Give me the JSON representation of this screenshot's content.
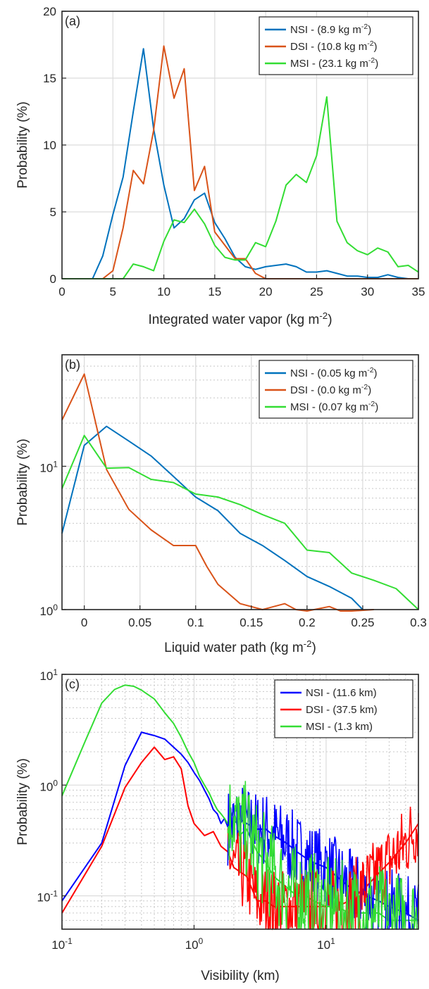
{
  "chart_data": [
    {
      "type": "line",
      "panel_label": "(a)",
      "xlabel": "Integrated water vapor (kg m",
      "xlabel_sup": "-2",
      "xlabel_end": ")",
      "ylabel": "Probability (%)",
      "xlim": [
        0,
        35
      ],
      "ylim": [
        0,
        20
      ],
      "xscale": "linear",
      "yscale": "linear",
      "x_ticks": [
        0,
        5,
        10,
        15,
        20,
        25,
        30,
        35
      ],
      "x_tick_labels": [
        "0",
        "5",
        "10",
        "15",
        "20",
        "25",
        "30",
        "35"
      ],
      "y_ticks": [
        0,
        5,
        10,
        15,
        20
      ],
      "y_tick_labels": [
        "0",
        "5",
        "10",
        "15",
        "20"
      ],
      "grid": true,
      "legend_position": "top-right",
      "series": [
        {
          "name": "NSI - (8.9 kg m",
          "name_sup": "-2",
          "name_end": ")",
          "color": "#0072BD",
          "x": [
            0,
            3,
            4,
            5,
            6,
            7,
            8,
            9,
            10,
            11,
            12,
            13,
            14,
            15,
            16,
            17,
            18,
            19,
            20,
            21,
            22,
            23,
            24,
            25,
            26,
            27,
            28,
            29,
            30,
            31,
            32,
            33,
            34,
            35
          ],
          "y": [
            0,
            0,
            1.7,
            4.8,
            7.6,
            12.5,
            17.2,
            11.2,
            7.0,
            3.8,
            4.5,
            5.9,
            6.4,
            4.2,
            3.0,
            1.6,
            0.9,
            0.7,
            0.9,
            1.0,
            1.1,
            0.9,
            0.5,
            0.5,
            0.6,
            0.4,
            0.2,
            0.2,
            0.1,
            0.1,
            0.3,
            0.1,
            0.0,
            0.0
          ]
        },
        {
          "name": "DSI - (10.8 kg m",
          "name_sup": "-2",
          "name_end": ")",
          "color": "#D95319",
          "x": [
            0,
            4,
            5,
            6,
            7,
            8,
            9,
            10,
            11,
            12,
            13,
            14,
            15,
            16,
            17,
            18,
            19,
            20,
            35
          ],
          "y": [
            0,
            0,
            0.6,
            3.8,
            8.1,
            7.1,
            11.1,
            17.4,
            13.5,
            15.7,
            6.6,
            8.4,
            3.5,
            2.5,
            1.5,
            1.5,
            0.4,
            0,
            0
          ]
        },
        {
          "name": "MSI - (23.1 kg m",
          "name_sup": "-2",
          "name_end": ")",
          "color": "#33DD33",
          "x": [
            0,
            6,
            7,
            8,
            9,
            10,
            11,
            12,
            13,
            14,
            15,
            16,
            17,
            18,
            19,
            20,
            21,
            22,
            23,
            24,
            25,
            26,
            27,
            28,
            29,
            30,
            31,
            32,
            33,
            34,
            35
          ],
          "y": [
            0,
            0,
            1.1,
            0.9,
            0.6,
            2.8,
            4.4,
            4.2,
            5.2,
            4.1,
            2.5,
            1.6,
            1.4,
            1.4,
            2.7,
            2.4,
            4.3,
            7.0,
            7.8,
            7.2,
            9.2,
            13.6,
            4.3,
            2.7,
            2.1,
            1.8,
            2.3,
            2.0,
            0.9,
            1.0,
            0.5
          ]
        }
      ]
    },
    {
      "type": "line",
      "panel_label": "(b)",
      "xlabel": "Liquid water path (kg m",
      "xlabel_sup": "-2",
      "xlabel_end": ")",
      "ylabel": "Probability (%)",
      "xlim": [
        -0.02,
        0.3
      ],
      "ylim": [
        1,
        60
      ],
      "xscale": "linear",
      "yscale": "log",
      "x_ticks": [
        0,
        0.05,
        0.1,
        0.15,
        0.2,
        0.25,
        0.3
      ],
      "x_tick_labels": [
        "0",
        "0.05",
        "0.1",
        "0.15",
        "0.2",
        "0.25",
        "0.3"
      ],
      "y_ticks": [
        1,
        10
      ],
      "y_tick_labels": [
        {
          "base": "10",
          "exp": "0"
        },
        {
          "base": "10",
          "exp": "1"
        }
      ],
      "grid": true,
      "minor_grid": true,
      "legend_position": "top-right",
      "series": [
        {
          "name": "NSI - (0.05 kg m",
          "name_sup": "-2",
          "name_end": ")",
          "color": "#0072BD",
          "x": [
            -0.02,
            0,
            0.02,
            0.04,
            0.06,
            0.08,
            0.1,
            0.12,
            0.14,
            0.16,
            0.18,
            0.2,
            0.22,
            0.24,
            0.25
          ],
          "y": [
            3.4,
            14.0,
            19.0,
            15.0,
            11.8,
            8.5,
            6.1,
            4.9,
            3.4,
            2.8,
            2.2,
            1.7,
            1.45,
            1.2,
            1.0
          ]
        },
        {
          "name": "DSI - (0.0 kg m",
          "name_sup": "-2",
          "name_end": ")",
          "color": "#D95319",
          "x": [
            -0.02,
            0,
            0.02,
            0.04,
            0.06,
            0.08,
            0.1,
            0.11,
            0.12,
            0.14,
            0.16,
            0.18,
            0.19,
            0.2,
            0.22,
            0.23,
            0.24,
            0.26
          ],
          "y": [
            21,
            44,
            9.5,
            5.0,
            3.6,
            2.8,
            2.8,
            2.0,
            1.5,
            1.1,
            1.0,
            1.1,
            1.0,
            0.95,
            1.05,
            0.95,
            0.95,
            1.0
          ]
        },
        {
          "name": "MSI - (0.07 kg m",
          "name_sup": "-2",
          "name_end": ")",
          "color": "#33DD33",
          "x": [
            -0.02,
            0,
            0.02,
            0.04,
            0.06,
            0.08,
            0.1,
            0.12,
            0.14,
            0.16,
            0.18,
            0.2,
            0.22,
            0.24,
            0.26,
            0.28,
            0.3
          ],
          "y": [
            7.0,
            16.4,
            9.7,
            9.8,
            8.1,
            7.7,
            6.4,
            6.1,
            5.4,
            4.6,
            4.0,
            2.6,
            2.5,
            1.8,
            1.6,
            1.4,
            1.0
          ]
        }
      ]
    },
    {
      "type": "line",
      "panel_label": "(c)",
      "xlabel": "Visibility (km)",
      "ylabel": "Probability (%)",
      "xlim": [
        0.1,
        50
      ],
      "ylim": [
        0.05,
        10
      ],
      "xscale": "log",
      "yscale": "log",
      "x_ticks": [
        0.1,
        1,
        10
      ],
      "x_tick_labels": [
        {
          "base": "10",
          "exp": "-1"
        },
        {
          "base": "10",
          "exp": "0"
        },
        {
          "base": "10",
          "exp": "1"
        }
      ],
      "y_ticks": [
        0.1,
        1,
        10
      ],
      "y_tick_labels": [
        {
          "base": "10",
          "exp": "-1"
        },
        {
          "base": "10",
          "exp": "0"
        },
        {
          "base": "10",
          "exp": "1"
        }
      ],
      "grid": true,
      "minor_grid": true,
      "legend_position": "top-right",
      "noise_tail": true,
      "series": [
        {
          "name": "NSI - (11.6 km)",
          "color": "#0000FF",
          "x": [
            0.1,
            0.2,
            0.3,
            0.4,
            0.5,
            0.6,
            0.7,
            0.8,
            0.9,
            1.0,
            1.1,
            1.2,
            1.3,
            1.4,
            1.5,
            1.6,
            1.7,
            1.8,
            2.0,
            2.2,
            2.5,
            3.0,
            3.5,
            4.0,
            5.0,
            6.0,
            7.0,
            8.0,
            10.0,
            12.0,
            15.0,
            20.0,
            25.0,
            30.0,
            40.0,
            50.0
          ],
          "y": [
            0.09,
            0.3,
            1.5,
            3.0,
            2.8,
            2.6,
            2.2,
            1.9,
            1.6,
            1.3,
            1.1,
            0.9,
            0.75,
            0.6,
            0.55,
            0.45,
            0.5,
            0.42,
            0.45,
            0.5,
            0.45,
            0.4,
            0.4,
            0.35,
            0.3,
            0.25,
            0.22,
            0.2,
            0.18,
            0.15,
            0.12,
            0.1,
            0.09,
            0.08,
            0.07,
            0.06
          ]
        },
        {
          "name": "DSI - (37.5 km)",
          "color": "#FF0000",
          "x": [
            0.1,
            0.2,
            0.3,
            0.4,
            0.5,
            0.6,
            0.7,
            0.8,
            0.9,
            1.0,
            1.2,
            1.4,
            1.6,
            1.8,
            2.0,
            2.5,
            3.0,
            3.5,
            4.0,
            5.0,
            6.0,
            7.0,
            8.0,
            10.0,
            12.0,
            15.0,
            20.0,
            25.0,
            30.0,
            40.0,
            50.0
          ],
          "y": [
            0.07,
            0.28,
            0.95,
            1.6,
            2.2,
            1.7,
            1.8,
            1.4,
            0.65,
            0.45,
            0.35,
            0.38,
            0.28,
            0.25,
            0.18,
            0.15,
            0.09,
            0.09,
            0.08,
            0.08,
            0.08,
            0.08,
            0.08,
            0.08,
            0.08,
            0.09,
            0.12,
            0.16,
            0.2,
            0.3,
            0.45
          ]
        },
        {
          "name": "MSI - (1.3 km)",
          "color": "#33DD33",
          "x": [
            0.1,
            0.15,
            0.2,
            0.25,
            0.3,
            0.35,
            0.4,
            0.5,
            0.6,
            0.7,
            0.8,
            0.9,
            1.0,
            1.1,
            1.2,
            1.3,
            1.4,
            1.5,
            1.6,
            1.7,
            1.8,
            2.0,
            2.2,
            2.5,
            3.0,
            3.5,
            4.0,
            5.0,
            6.0,
            7.0,
            8.0,
            10.0,
            12.0,
            15.0,
            20.0,
            25.0,
            30.0,
            40.0,
            50.0
          ],
          "y": [
            0.8,
            2.5,
            5.5,
            7.3,
            8.0,
            7.8,
            7.2,
            6.0,
            4.5,
            3.6,
            2.7,
            2.0,
            1.6,
            1.2,
            1.0,
            0.85,
            0.7,
            0.6,
            0.55,
            0.5,
            0.45,
            0.6,
            0.35,
            0.4,
            0.25,
            0.2,
            0.15,
            0.12,
            0.1,
            0.1,
            0.09,
            0.08,
            0.08,
            0.07,
            0.07,
            0.07,
            0.06,
            0.06,
            0.06
          ]
        }
      ]
    }
  ]
}
